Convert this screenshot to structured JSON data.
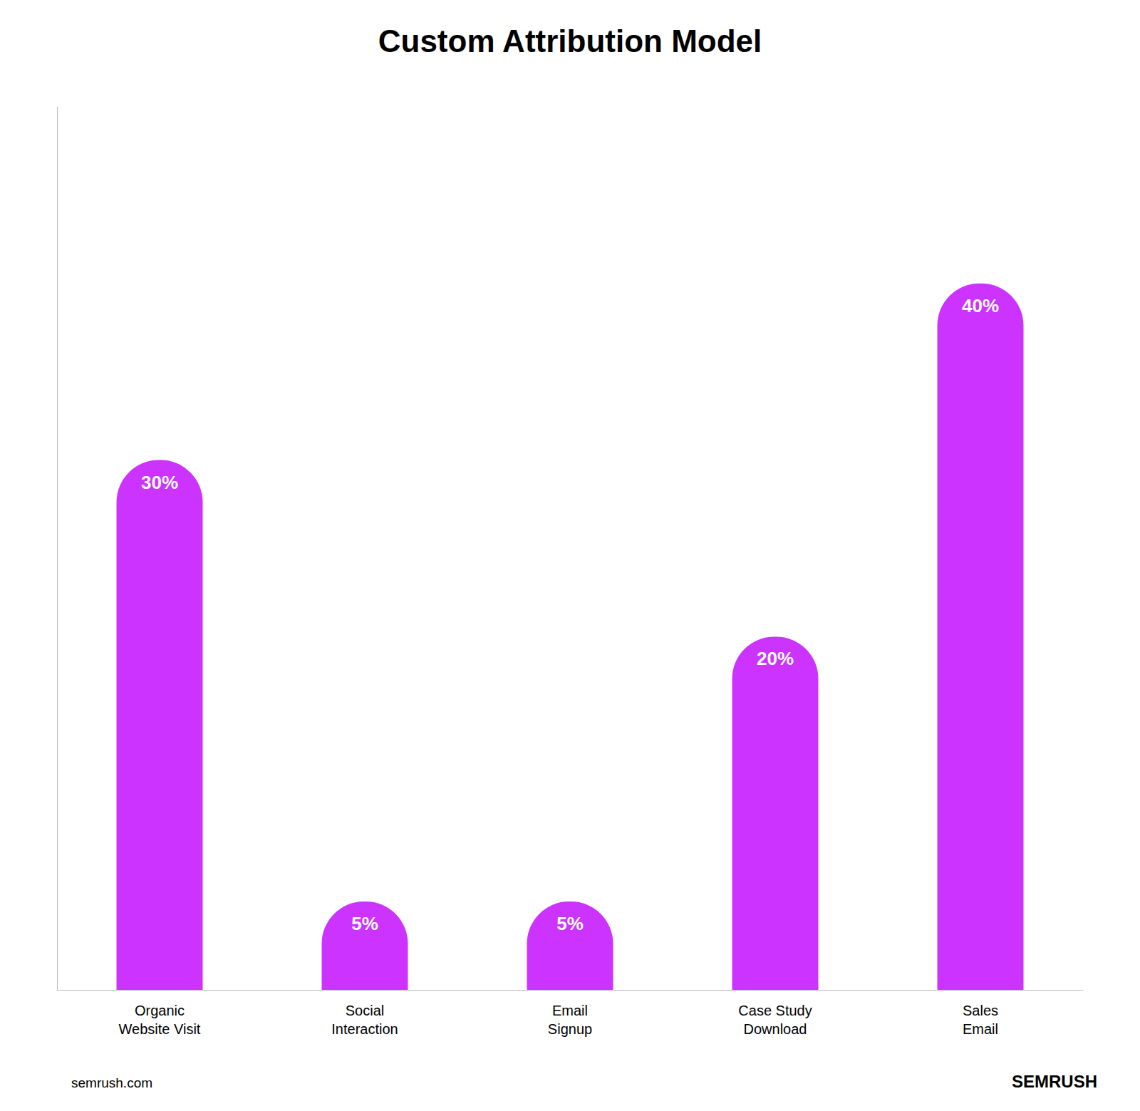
{
  "chart_data": {
    "type": "bar",
    "title": "Custom Attribution Model",
    "categories": [
      "Organic\nWebsite Visit",
      "Social\nInteraction",
      "Email\nSignup",
      "Case Study\nDownload",
      "Sales\nEmail"
    ],
    "values": [
      30,
      5,
      5,
      20,
      40
    ],
    "value_labels": [
      "30%",
      "5%",
      "5%",
      "20%",
      "40%"
    ],
    "data_labels": true,
    "color": "#CC33FF",
    "ylim": [
      0,
      50
    ],
    "grid": false,
    "tick_labels": "x",
    "annotations": [
      "semrush.com",
      "SEMRUSH"
    ]
  }
}
